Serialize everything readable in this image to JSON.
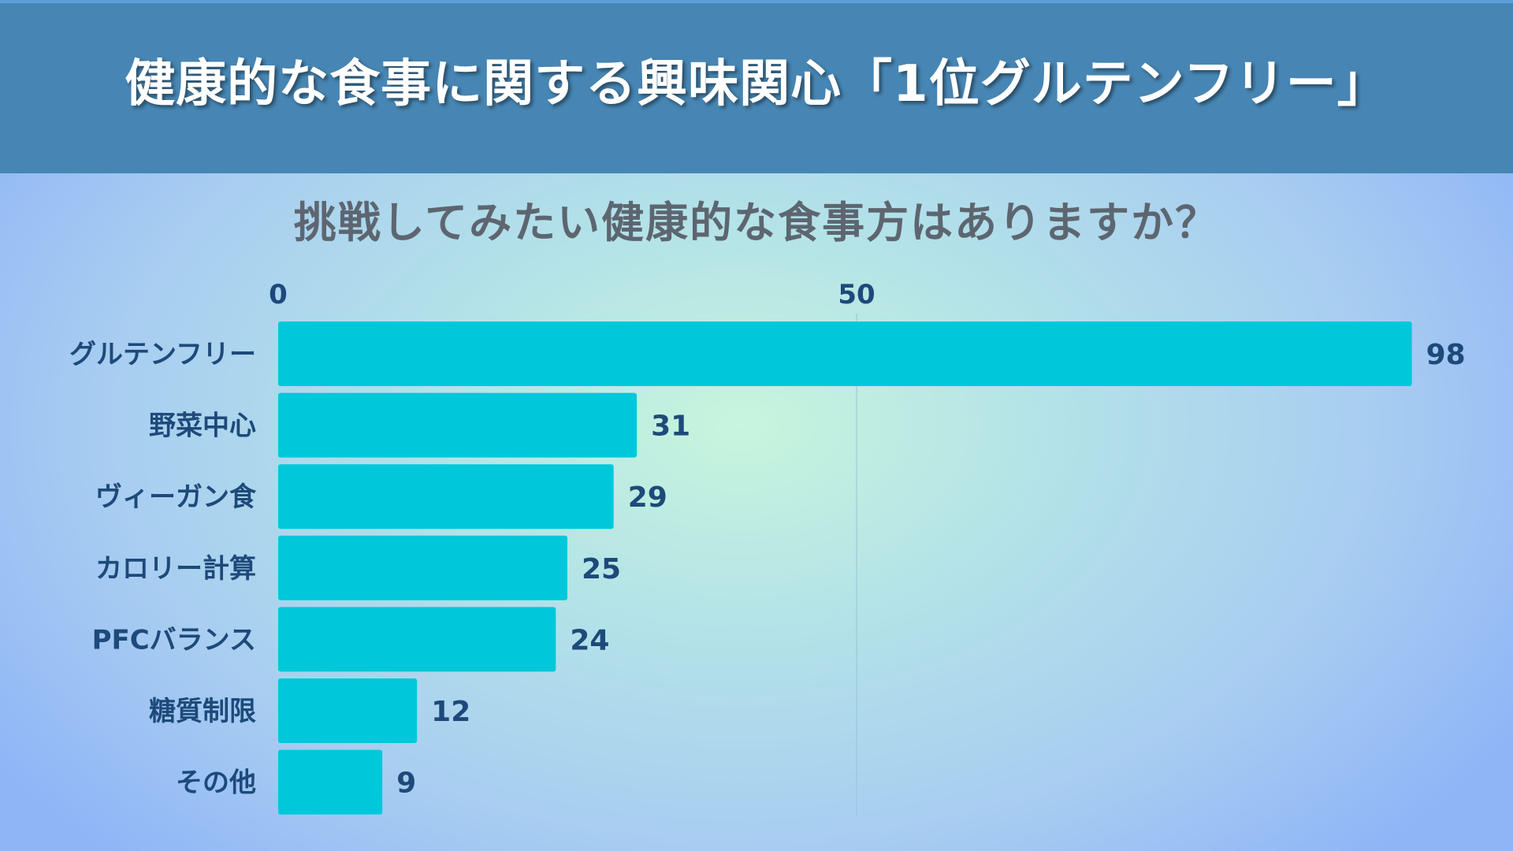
{
  "header": {
    "title": "健康的な食事に関する興味関心「1位グルテンフリー」"
  },
  "colors": {
    "banner": "#4786b4",
    "bar": "#00c8da",
    "label": "#1d4a7a",
    "subtitle": "#5d6670"
  },
  "chart_data": {
    "type": "bar",
    "orientation": "horizontal",
    "title": "挑戦してみたい健康的な食事方はありますか？",
    "categories": [
      "グルテンフリー",
      "野菜中心",
      "ヴィーガン食",
      "カロリー計算",
      "PFCバランス",
      "糖質制限",
      "その他"
    ],
    "values": [
      98,
      31,
      29,
      25,
      24,
      12,
      9
    ],
    "x_ticks": [
      0,
      50
    ],
    "xlim": [
      0,
      98
    ],
    "xlabel": "",
    "ylabel": "",
    "grid": true,
    "data_labels": true
  }
}
